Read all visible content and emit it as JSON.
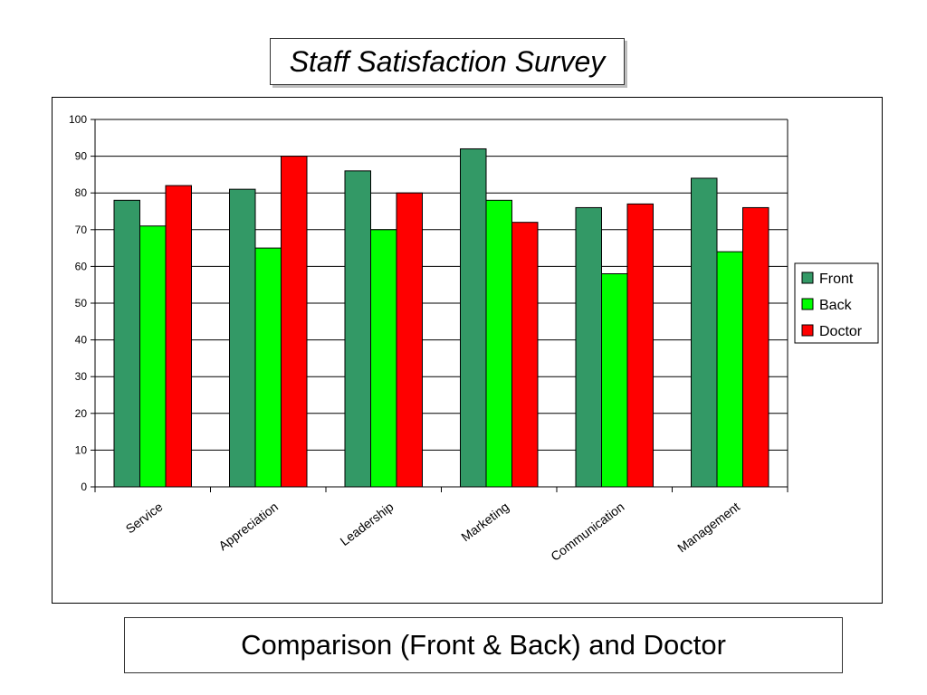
{
  "header": {
    "title": "Staff Satisfaction Survey"
  },
  "footer": {
    "caption": "Comparison (Front & Back) and Doctor"
  },
  "chart_data": {
    "type": "bar",
    "categories": [
      "Service",
      "Appreciation",
      "Leadership",
      "Marketing",
      "Communication",
      "Management"
    ],
    "series": [
      {
        "name": "Front",
        "color": "#339966",
        "values": [
          78,
          81,
          86,
          92,
          76,
          84
        ]
      },
      {
        "name": "Back",
        "color": "#00ff00",
        "values": [
          71,
          65,
          70,
          78,
          58,
          64
        ]
      },
      {
        "name": "Doctor",
        "color": "#ff0000",
        "values": [
          82,
          90,
          80,
          72,
          77,
          76
        ]
      }
    ],
    "ylim": [
      0,
      100
    ],
    "yticks": [
      0,
      10,
      20,
      30,
      40,
      50,
      60,
      70,
      80,
      90,
      100
    ],
    "grid": true,
    "legend": "right"
  }
}
